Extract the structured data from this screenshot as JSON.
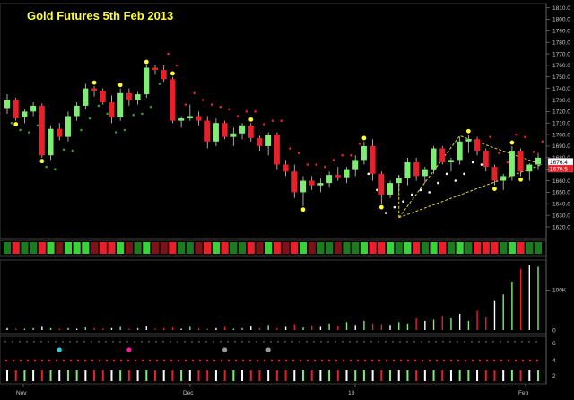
{
  "chart_data": {
    "type": "candlestick",
    "title": "Gold Futures 5th Feb 2013",
    "ylim": [
      1613,
      1812
    ],
    "y_ticks": [
      "1620.0",
      "1630.0",
      "1640.0",
      "1650.0",
      "1660.0",
      "1670.0",
      "1680.0",
      "1690.0",
      "1700.0",
      "1710.0",
      "1720.0",
      "1730.0",
      "1740.0",
      "1750.0",
      "1760.0",
      "1770.0",
      "1780.0",
      "1790.0",
      "1800.0",
      "1810.0"
    ],
    "last_price_tags": [
      {
        "label": "1676.4",
        "value": 1676.4,
        "color": "#ffffff"
      },
      {
        "label": "1670.5",
        "value": 1670.5,
        "color": "#e8202a"
      }
    ],
    "volume_axis_labels": [
      "100K",
      "0"
    ],
    "indicator_axis_labels": [
      "6",
      "4",
      "2"
    ],
    "x_labels": [
      "Nov",
      "Dec",
      "13",
      "Feb"
    ],
    "colors": {
      "up": "#7ded74",
      "down": "#e8202a",
      "buy_dot": "#2ca02c",
      "sell_dot": "#e8202a",
      "marker": "#ffff33",
      "triangle": "#e6d532"
    },
    "candles": [
      [
        1723,
        1735,
        1718,
        1730
      ],
      [
        1730,
        1732,
        1712,
        1714
      ],
      [
        1715,
        1722,
        1710,
        1720
      ],
      [
        1720,
        1728,
        1716,
        1725
      ],
      [
        1725,
        1727,
        1680,
        1682
      ],
      [
        1682,
        1708,
        1678,
        1705
      ],
      [
        1705,
        1710,
        1695,
        1698
      ],
      [
        1698,
        1720,
        1694,
        1716
      ],
      [
        1716,
        1728,
        1712,
        1725
      ],
      [
        1725,
        1744,
        1722,
        1740
      ],
      [
        1740,
        1742,
        1733,
        1738
      ],
      [
        1738,
        1740,
        1726,
        1728
      ],
      [
        1728,
        1734,
        1710,
        1715
      ],
      [
        1715,
        1740,
        1712,
        1736
      ],
      [
        1736,
        1740,
        1725,
        1730
      ],
      [
        1730,
        1737,
        1726,
        1735
      ],
      [
        1735,
        1760,
        1732,
        1758
      ],
      [
        1758,
        1760,
        1752,
        1756
      ],
      [
        1756,
        1760,
        1746,
        1748
      ],
      [
        1748,
        1750,
        1710,
        1712
      ],
      [
        1712,
        1716,
        1706,
        1714
      ],
      [
        1714,
        1726,
        1712,
        1716
      ],
      [
        1716,
        1720,
        1708,
        1712
      ],
      [
        1712,
        1716,
        1688,
        1694
      ],
      [
        1694,
        1714,
        1690,
        1710
      ],
      [
        1710,
        1712,
        1696,
        1698
      ],
      [
        1698,
        1706,
        1690,
        1701
      ],
      [
        1701,
        1710,
        1696,
        1708
      ],
      [
        1708,
        1710,
        1694,
        1697
      ],
      [
        1697,
        1699,
        1686,
        1690
      ],
      [
        1690,
        1702,
        1682,
        1700
      ],
      [
        1700,
        1702,
        1670,
        1674
      ],
      [
        1674,
        1678,
        1664,
        1668
      ],
      [
        1668,
        1674,
        1645,
        1650
      ],
      [
        1650,
        1664,
        1638,
        1660
      ],
      [
        1660,
        1664,
        1652,
        1656
      ],
      [
        1656,
        1662,
        1650,
        1658
      ],
      [
        1658,
        1668,
        1654,
        1665
      ],
      [
        1665,
        1672,
        1660,
        1663
      ],
      [
        1663,
        1672,
        1658,
        1670
      ],
      [
        1670,
        1682,
        1664,
        1678
      ],
      [
        1678,
        1694,
        1674,
        1690
      ],
      [
        1690,
        1696,
        1660,
        1666
      ],
      [
        1666,
        1668,
        1640,
        1648
      ],
      [
        1648,
        1660,
        1645,
        1658
      ],
      [
        1658,
        1664,
        1650,
        1662
      ],
      [
        1662,
        1680,
        1656,
        1676
      ],
      [
        1676,
        1680,
        1660,
        1664
      ],
      [
        1664,
        1672,
        1658,
        1670
      ],
      [
        1670,
        1690,
        1666,
        1688
      ],
      [
        1688,
        1690,
        1674,
        1676
      ],
      [
        1676,
        1680,
        1668,
        1678
      ],
      [
        1678,
        1698,
        1674,
        1694
      ],
      [
        1694,
        1700,
        1684,
        1696
      ],
      [
        1696,
        1698,
        1682,
        1686
      ],
      [
        1686,
        1688,
        1668,
        1672
      ],
      [
        1672,
        1674,
        1656,
        1660
      ],
      [
        1660,
        1666,
        1652,
        1664
      ],
      [
        1664,
        1690,
        1660,
        1686
      ],
      [
        1686,
        1688,
        1664,
        1668
      ],
      [
        1668,
        1675,
        1660,
        1674
      ],
      [
        1674,
        1684,
        1670,
        1680
      ]
    ],
    "volume_pct": [
      3,
      2,
      2,
      3,
      5,
      3,
      2,
      3,
      2,
      4,
      3,
      2,
      3,
      5,
      2,
      3,
      6,
      2,
      3,
      4,
      2,
      5,
      3,
      2,
      3,
      5,
      2,
      3,
      6,
      3,
      8,
      3,
      5,
      9,
      4,
      7,
      5,
      10,
      6,
      12,
      8,
      14,
      10,
      9,
      8,
      12,
      10,
      18,
      14,
      16,
      22,
      18,
      25,
      14,
      30,
      20,
      45,
      55,
      75,
      95,
      100,
      98
    ]
  }
}
